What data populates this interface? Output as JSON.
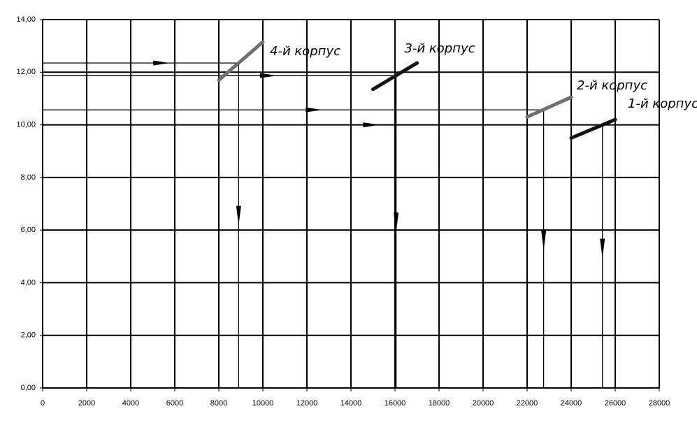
{
  "chart_data": {
    "type": "line",
    "xlim": [
      0,
      28000
    ],
    "xticks": [
      0,
      2000,
      4000,
      6000,
      8000,
      10000,
      12000,
      14000,
      16000,
      18000,
      20000,
      22000,
      24000,
      26000,
      28000
    ],
    "ylim": [
      0,
      14
    ],
    "yticks": [
      {
        "value": 0,
        "label": "0,00"
      },
      {
        "value": 2,
        "label": "2,00"
      },
      {
        "value": 4,
        "label": "4,00"
      },
      {
        "value": 6,
        "label": "6,00"
      },
      {
        "value": 8,
        "label": "8,00"
      },
      {
        "value": 10,
        "label": "10,00"
      },
      {
        "value": 12,
        "label": "12,00"
      },
      {
        "value": 14,
        "label": "14,00"
      }
    ],
    "grid": true,
    "series": [
      {
        "name": "4-й корпус",
        "color": "#707070",
        "x": [
          8000,
          10000
        ],
        "values": [
          11.7,
          13.15
        ]
      },
      {
        "name": "3-й корпус",
        "color": "#111111",
        "x": [
          15000,
          17000
        ],
        "values": [
          11.35,
          12.35
        ]
      },
      {
        "name": "2-й корпус",
        "color": "#707070",
        "x": [
          22000,
          24000
        ],
        "values": [
          10.3,
          11.05
        ]
      },
      {
        "name": "1-й корпус",
        "color": "#111111",
        "x": [
          24000,
          26000
        ],
        "values": [
          9.5,
          10.2
        ]
      }
    ],
    "guides": [
      {
        "x": 8900,
        "y": 12.35
      },
      {
        "x": 16050,
        "y": 11.87
      },
      {
        "x": 22750,
        "y": 10.57
      },
      {
        "x": 25420,
        "y": 10.0
      }
    ]
  }
}
